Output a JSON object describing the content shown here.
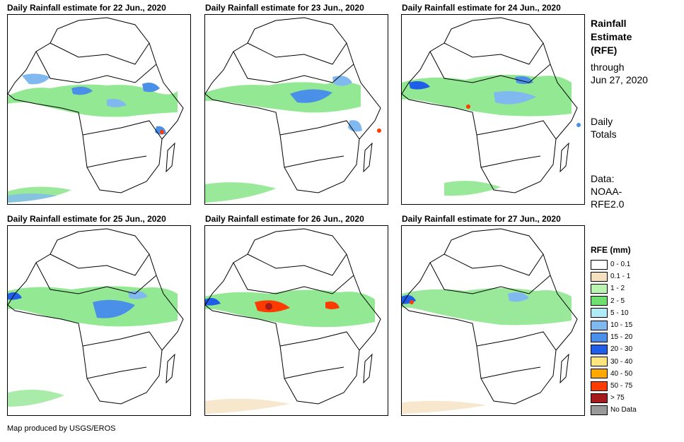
{
  "panels": [
    {
      "title": "Daily Rainfall estimate for 22 Jun., 2020"
    },
    {
      "title": "Daily Rainfall estimate for 23 Jun., 2020"
    },
    {
      "title": "Daily Rainfall estimate for 24 Jun., 2020"
    },
    {
      "title": "Daily Rainfall estimate for 25 Jun., 2020"
    },
    {
      "title": "Daily Rainfall estimate for 26 Jun., 2020"
    },
    {
      "title": "Daily Rainfall estimate for 27 Jun., 2020"
    }
  ],
  "side": {
    "product_line1": "Rainfall",
    "product_line2": "Estimate",
    "product_line3": "(RFE)",
    "through_label": "through",
    "through_date": "Jun 27, 2020",
    "totals_line1": "Daily",
    "totals_line2": "Totals",
    "data_line1": "Data:",
    "data_line2": "NOAA-",
    "data_line3": "RFE2.0"
  },
  "legend": {
    "title": "RFE (mm)",
    "items": [
      {
        "label": "0 - 0.1",
        "color": "#ffffff"
      },
      {
        "label": "0.1 - 1",
        "color": "#f5e1c0"
      },
      {
        "label": "1 - 2",
        "color": "#b9f5b0"
      },
      {
        "label": "2 - 5",
        "color": "#6fe06f"
      },
      {
        "label": "5 - 10",
        "color": "#b0ecf5"
      },
      {
        "label": "10 - 15",
        "color": "#80b9f0"
      },
      {
        "label": "15 - 20",
        "color": "#4a90e8"
      },
      {
        "label": "20 - 30",
        "color": "#1f5ee8"
      },
      {
        "label": "30 - 40",
        "color": "#ffe680"
      },
      {
        "label": "40 - 50",
        "color": "#ffa800"
      },
      {
        "label": "50 - 75",
        "color": "#ff3c00"
      },
      {
        "label": "> 75",
        "color": "#a51a1a"
      },
      {
        "label": "No Data",
        "color": "#999999"
      }
    ]
  },
  "footer": "Map produced by USGS/EROS"
}
